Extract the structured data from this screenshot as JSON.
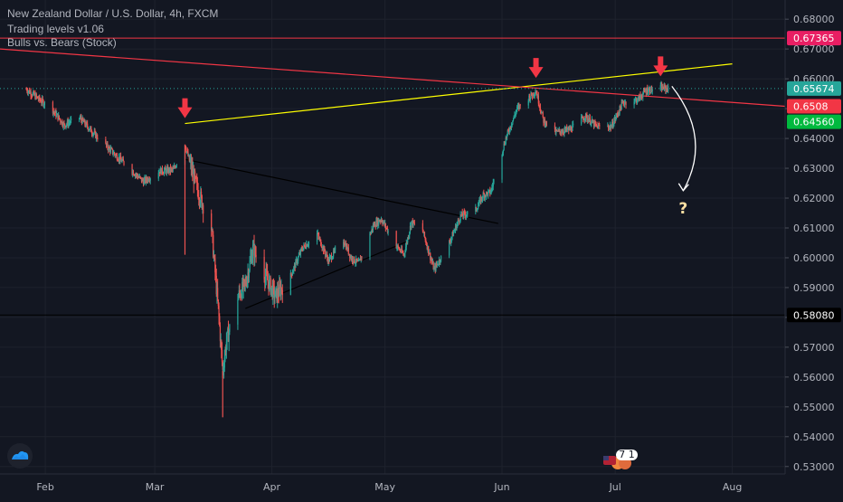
{
  "header": {
    "title": "New Zealand Dollar / U.S. Dollar, 4h, FXCM",
    "indicators": [
      "Trading levels v1.06",
      "Bulls vs. Bears (Stock)"
    ]
  },
  "chart_data": {
    "type": "candlestick",
    "symbol": "NZDUSD",
    "timeframe": "4h",
    "xlabels": [
      "Feb",
      "Mar",
      "Apr",
      "May",
      "Jun",
      "Jul",
      "Aug"
    ],
    "ylabels": [
      "0.68000",
      "0.67000",
      "0.66000",
      "0.65000",
      "0.64000",
      "0.63000",
      "0.62000",
      "0.61000",
      "0.60000",
      "0.59000",
      "0.58000",
      "0.57000",
      "0.56000",
      "0.55000",
      "0.54000",
      "0.53000"
    ],
    "ylim": [
      0.5275,
      0.684
    ],
    "price_path": [
      [
        "2020-01-27",
        0.6565
      ],
      [
        "2020-02-03",
        0.6495
      ],
      [
        "2020-02-06",
        0.6445
      ],
      [
        "2020-02-10",
        0.647
      ],
      [
        "2020-02-14",
        0.6415
      ],
      [
        "2020-02-20",
        0.634
      ],
      [
        "2020-02-27",
        0.6255
      ],
      [
        "2020-03-02",
        0.629
      ],
      [
        "2020-03-06",
        0.6295
      ],
      [
        "2020-03-09",
        0.638
      ],
      [
        "2020-03-12",
        0.624
      ],
      [
        "2020-03-16",
        0.61
      ],
      [
        "2020-03-18",
        0.58
      ],
      [
        "2020-03-19",
        0.562
      ],
      [
        "2020-03-20",
        0.572
      ],
      [
        "2020-03-23",
        0.587
      ],
      [
        "2020-03-25",
        0.591
      ],
      [
        "2020-03-27",
        0.603
      ],
      [
        "2020-03-31",
        0.592
      ],
      [
        "2020-04-02",
        0.587
      ],
      [
        "2020-04-06",
        0.594
      ],
      [
        "2020-04-09",
        0.603
      ],
      [
        "2020-04-13",
        0.608
      ],
      [
        "2020-04-16",
        0.599
      ],
      [
        "2020-04-20",
        0.606
      ],
      [
        "2020-04-22",
        0.6
      ],
      [
        "2020-04-24",
        0.598
      ],
      [
        "2020-04-28",
        0.611
      ],
      [
        "2020-04-30",
        0.613
      ],
      [
        "2020-05-04",
        0.604
      ],
      [
        "2020-05-06",
        0.601
      ],
      [
        "2020-05-08",
        0.612
      ],
      [
        "2020-05-11",
        0.609
      ],
      [
        "2020-05-14",
        0.596
      ],
      [
        "2020-05-18",
        0.605
      ],
      [
        "2020-05-21",
        0.614
      ],
      [
        "2020-05-25",
        0.616
      ],
      [
        "2020-05-27",
        0.621
      ],
      [
        "2020-05-29",
        0.622
      ],
      [
        "2020-06-02",
        0.64
      ],
      [
        "2020-06-05",
        0.65
      ],
      [
        "2020-06-10",
        0.656
      ],
      [
        "2020-06-12",
        0.646
      ],
      [
        "2020-06-15",
        0.642
      ],
      [
        "2020-06-19",
        0.643
      ],
      [
        "2020-06-23",
        0.6475
      ],
      [
        "2020-06-26",
        0.644
      ],
      [
        "2020-06-30",
        0.644
      ],
      [
        "2020-07-03",
        0.652
      ],
      [
        "2020-07-07",
        0.653
      ],
      [
        "2020-07-09",
        0.656
      ],
      [
        "2020-07-13",
        0.657
      ],
      [
        "2020-07-15",
        0.6567
      ]
    ],
    "annotations": {
      "spike_low": [
        "2020-03-09",
        0.601
      ],
      "spike_low2": [
        "2020-03-19",
        0.5465
      ],
      "trendlines": [
        {
          "name": "rising-resistance-line",
          "color": "#ffff00",
          "from": [
            "2020-03-09",
            0.645
          ],
          "to": [
            "2020-08-01",
            0.665
          ]
        },
        {
          "name": "falling-trend-line",
          "color": "#f23645",
          "from": [
            "2020-01-20",
            0.67
          ],
          "to": [
            "2020-08-15",
            0.6508
          ]
        },
        {
          "name": "wedge-upper-line",
          "color": "#000000",
          "from": [
            "2020-03-09",
            0.633
          ],
          "to": [
            "2020-05-31",
            0.6115
          ]
        },
        {
          "name": "wedge-lower-line",
          "color": "#000000",
          "from": [
            "2020-03-25",
            0.583
          ],
          "to": [
            "2020-05-07",
            0.6055
          ]
        }
      ],
      "arrows": [
        [
          "2020-03-09",
          0.645
        ],
        [
          "2020-06-10",
          0.6585
        ],
        [
          "2020-07-13",
          0.659
        ]
      ],
      "question_mark": "?",
      "curve_arrow": [
        [
          "2020-07-16",
          0.6575
        ],
        [
          "2020-07-19",
          0.6225
        ]
      ]
    },
    "hlines": [
      {
        "name": "level-067365",
        "value": 0.67365,
        "color": "#f23645",
        "label": "0.67365",
        "label_bg": "#e91e63"
      },
      {
        "name": "current-price",
        "value": 0.65674,
        "color": "#26a69a",
        "style": "dotted",
        "label": "0.65674",
        "label_bg": "#26a69a"
      },
      {
        "name": "level-058080",
        "value": 0.5808,
        "color": "#000000",
        "label": "0.58080",
        "label_bg": "#000000"
      }
    ],
    "price_badges": [
      {
        "value": 0.6508,
        "label": "0.6508",
        "bg": "#f23645"
      },
      {
        "value": 0.6456,
        "label": "0.64560",
        "bg": "#00b93e"
      }
    ],
    "candle_up": "#26a69a",
    "candle_down": "#ef5350",
    "grid": true
  },
  "colors": {
    "background": "#131722",
    "axis": "#b2b5be",
    "gridline": "#1e222d",
    "arrow": "#f23645"
  },
  "icons": {
    "logo": "tradingview-cloud-icon",
    "events": "us-flag-events-icon"
  },
  "events_count": "7 1"
}
